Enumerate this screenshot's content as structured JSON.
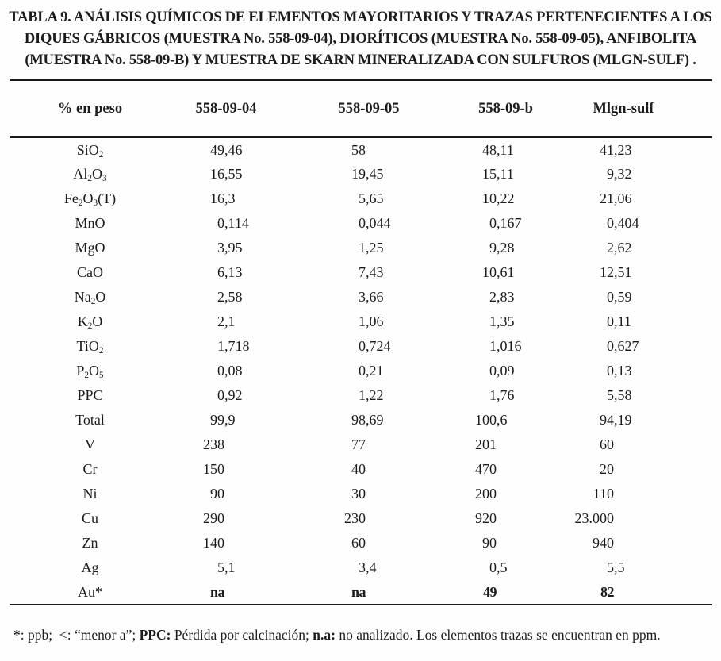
{
  "title": {
    "lines": [
      "TABLA 9. ANÁLISIS QUÍMICOS DE ELEMENTOS MAYORITARIOS Y TRAZAS PERTENECIENTES A LOS",
      "DIQUES GÁBRICOS (MUESTRA No. 558-09-04), DIORÍTICOS (MUESTRA No. 558-09-05), ANFIBOLITA",
      "(MUESTRA No. 558-09-B) Y MUESTRA DE SKARN MINERALIZADA CON SULFUROS (MLGN-SULF) ."
    ]
  },
  "table": {
    "headers": [
      "% en peso",
      "558-09-04",
      "558-09-05",
      "558-09-b",
      "Mlgn-sulf"
    ],
    "rows": [
      {
        "label": "SiO{2}",
        "values": [
          "49,46",
          "58",
          "48,11",
          "41,23"
        ]
      },
      {
        "label": "Al{2}O{3}",
        "values": [
          "16,55",
          "19,45",
          "15,11",
          "9,32"
        ]
      },
      {
        "label": "Fe{2}O{3}(T)",
        "values": [
          "16,3",
          "5,65",
          "10,22",
          "21,06"
        ]
      },
      {
        "label": "MnO",
        "values": [
          "0,114",
          "0,044",
          "0,167",
          "0,404"
        ]
      },
      {
        "label": "MgO",
        "values": [
          "3,95",
          "1,25",
          "9,28",
          "2,62"
        ]
      },
      {
        "label": "CaO",
        "values": [
          "6,13",
          "7,43",
          "10,61",
          "12,51"
        ]
      },
      {
        "label": "Na{2}O",
        "values": [
          "2,58",
          "3,66",
          "2,83",
          "0,59"
        ]
      },
      {
        "label": "K{2}O",
        "values": [
          "2,1",
          "1,06",
          "1,35",
          "0,11"
        ]
      },
      {
        "label": "TiO{2}",
        "values": [
          "1,718",
          "0,724",
          "1,016",
          "0,627"
        ]
      },
      {
        "label": "P{2}O{5}",
        "values": [
          "0,08",
          "0,21",
          "0,09",
          "0,13"
        ]
      },
      {
        "label": "PPC",
        "values": [
          "0,92",
          "1,22",
          "1,76",
          "5,58"
        ]
      },
      {
        "label": "Total",
        "values": [
          "99,9",
          "98,69",
          "100,6",
          "94,19"
        ]
      },
      {
        "label": "V",
        "values": [
          "238",
          "77",
          "201",
          "60"
        ]
      },
      {
        "label": "Cr",
        "values": [
          "150",
          "40",
          "470",
          "20"
        ]
      },
      {
        "label": "Ni",
        "values": [
          "90",
          "30",
          "200",
          "110"
        ]
      },
      {
        "label": "Cu",
        "values": [
          "290",
          "230",
          "920",
          "23.000"
        ]
      },
      {
        "label": "Zn",
        "values": [
          "140",
          "60",
          "90",
          "940"
        ]
      },
      {
        "label": "Ag",
        "values": [
          "5,1",
          "3,4",
          "0,5",
          "5,5"
        ]
      },
      {
        "label": "Au*",
        "values": [
          "na",
          "na",
          "49",
          "82"
        ],
        "bold": true
      }
    ]
  },
  "footnote": {
    "segments": [
      {
        "text": "*",
        "bold": true
      },
      {
        "text": ": ppb;  <: “menor a”; ",
        "bold": false
      },
      {
        "text": "PPC:",
        "bold": true
      },
      {
        "text": " Pérdida por calcinación; ",
        "bold": false
      },
      {
        "text": "n.a:",
        "bold": true
      },
      {
        "text": " no analizado. Los elementos trazas se encuentran en ppm.",
        "bold": false
      }
    ]
  }
}
